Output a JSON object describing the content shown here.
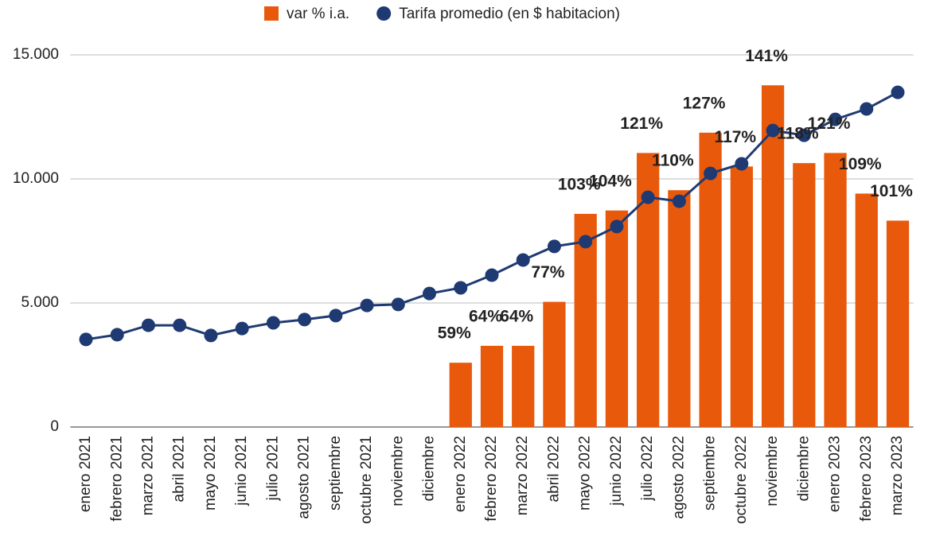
{
  "chart_data": {
    "type": "combo",
    "categories": [
      "enero 2021",
      "febrero 2021",
      "marzo 2021",
      "abril 2021",
      "mayo 2021",
      "junio 2021",
      "julio 2021",
      "agosto 2021",
      "septiembre",
      "octubre 2021",
      "noviembre",
      "diciembre",
      "enero 2022",
      "febrero 2022",
      "marzo 2022",
      "abril 2022",
      "mayo 2022",
      "junio 2022",
      "julio 2022",
      "agosto 2022",
      "septiembre",
      "octubre 2022",
      "noviembre",
      "diciembre",
      "enero 2023",
      "febrero 2023",
      "marzo 2023"
    ],
    "series": [
      {
        "name": "var % i.a.",
        "type": "bar",
        "axis": "y2",
        "color": "#e8590c",
        "values": [
          null,
          null,
          null,
          null,
          null,
          null,
          null,
          null,
          null,
          null,
          null,
          null,
          59,
          64,
          64,
          77,
          103,
          104,
          121,
          110,
          127,
          117,
          141,
          118,
          121,
          109,
          101
        ],
        "value_labels": [
          null,
          null,
          null,
          null,
          null,
          null,
          null,
          null,
          null,
          null,
          null,
          null,
          "59%",
          "64%",
          "64%",
          "77%",
          "103%",
          "104%",
          "121%",
          "110%",
          "127%",
          "117%",
          "141%",
          "118%",
          "121%",
          "109%",
          "101%"
        ]
      },
      {
        "name": "Tarifa promedio (en $ habitacion)",
        "type": "line",
        "color": "#1f3a73",
        "values": [
          3530,
          3720,
          4100,
          4100,
          3690,
          3970,
          4200,
          4330,
          4490,
          4900,
          4940,
          5380,
          5610,
          6120,
          6730,
          7280,
          7470,
          8080,
          9260,
          9100,
          10220,
          10610,
          11950,
          11760,
          12400,
          12820,
          13490
        ]
      }
    ],
    "ylim": [
      0,
      15000
    ],
    "yticks": [
      0,
      {
        "value": 5000,
        "label": "5.000"
      },
      {
        "value": 10000,
        "label": "10.000"
      },
      {
        "value": 15000,
        "label": "15.000"
      }
    ],
    "y2lim": [
      40,
      150
    ],
    "grid": true,
    "legend": "top"
  }
}
